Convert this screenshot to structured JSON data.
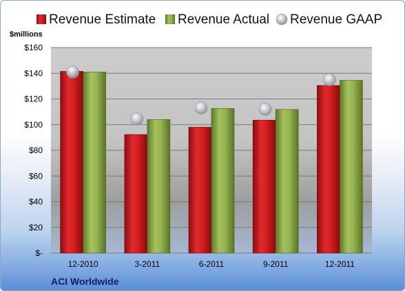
{
  "chart_data": {
    "type": "bar",
    "title": "",
    "unit_label": "$millions",
    "footer_label": "ACI Worldwide",
    "categories": [
      "12-2010",
      "3-2011",
      "6-2011",
      "9-2011",
      "12-2011"
    ],
    "series": [
      {
        "name": "Revenue Estimate",
        "type": "bar",
        "color": "#c8161b",
        "values": [
          141.5,
          92.3,
          98.0,
          103.5,
          130.5
        ]
      },
      {
        "name": "Revenue Actual",
        "type": "bar",
        "color": "#8aa548",
        "values": [
          141.0,
          104.0,
          112.6,
          111.8,
          134.5
        ]
      },
      {
        "name": "Revenue GAAP",
        "type": "marker",
        "color": "#b8bcc4",
        "values": [
          141.0,
          104.5,
          113.0,
          112.0,
          135.0
        ]
      }
    ],
    "y_ticks": [
      "$-",
      "$20",
      "$40",
      "$60",
      "$80",
      "$100",
      "$120",
      "$140",
      "$160"
    ],
    "ylim": [
      0,
      160
    ],
    "grid": true,
    "legend_position": "top"
  }
}
